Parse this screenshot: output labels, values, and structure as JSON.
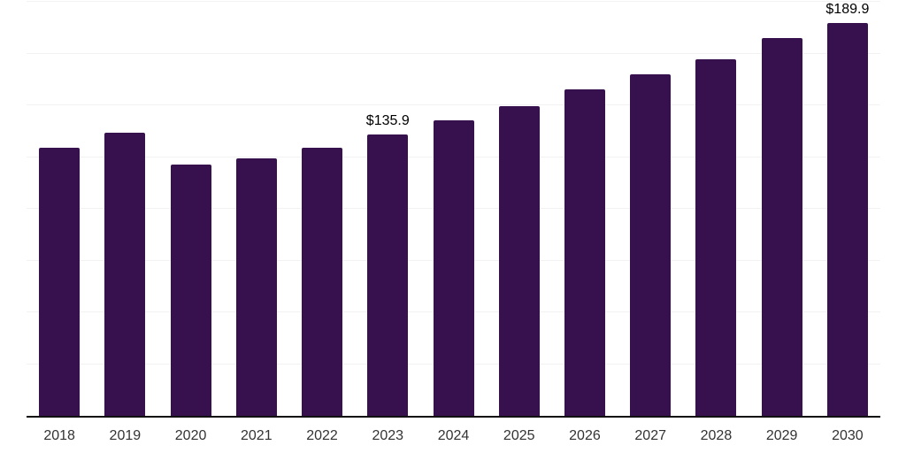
{
  "chart_data": {
    "type": "bar",
    "title": "",
    "xlabel": "",
    "ylabel": "",
    "categories": [
      "2018",
      "2019",
      "2020",
      "2021",
      "2022",
      "2023",
      "2024",
      "2025",
      "2026",
      "2027",
      "2028",
      "2029",
      "2030"
    ],
    "values": [
      129.6,
      136.8,
      121.4,
      124.2,
      129.5,
      135.9,
      142.9,
      149.6,
      157.6,
      164.9,
      172.4,
      182.6,
      189.9
    ],
    "data_labels": [
      "",
      "",
      "",
      "",
      "",
      "$135.9",
      "",
      "",
      "",
      "",
      "",
      "",
      "$189.9"
    ],
    "ylim": [
      0,
      200
    ],
    "grid_step": 25,
    "grid": "horizontal",
    "legend": false,
    "y_tick_labels_visible": false,
    "bar_color": "#36114d",
    "axis_line_color": "#111111",
    "gridline_color": "#f2f2f2",
    "tick_label_color": "#333333",
    "value_label_color": "#000000",
    "background_color": "#ffffff"
  }
}
